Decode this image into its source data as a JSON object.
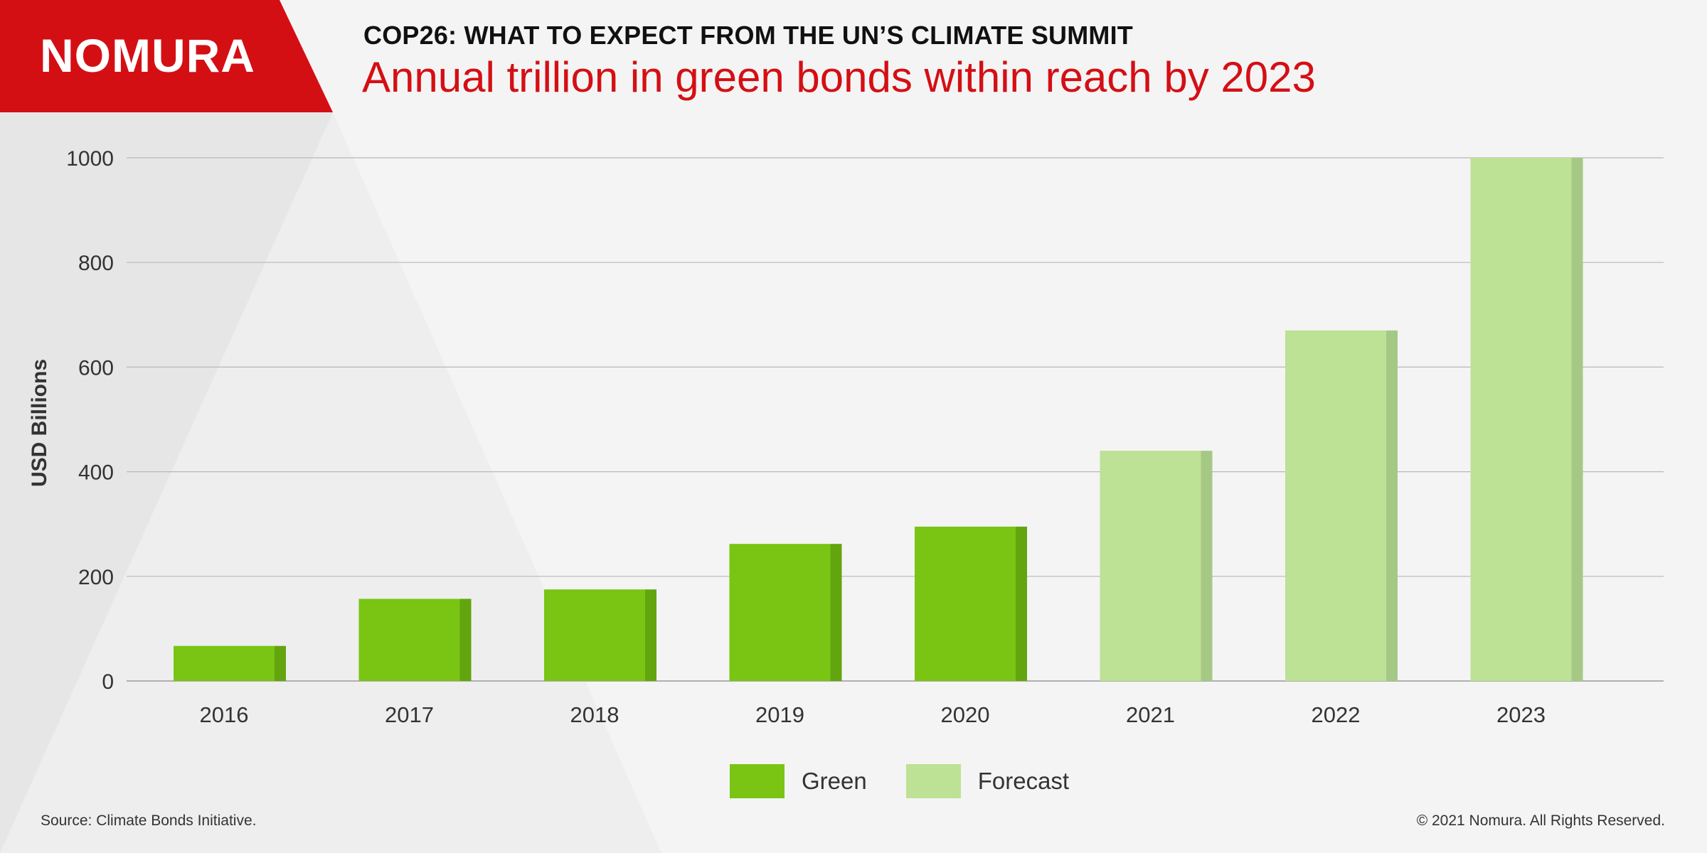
{
  "brand": {
    "logo_text": "NOMURA",
    "colors": {
      "red": "#d40f14",
      "green": "#7ac414",
      "green_side": "#63a50f",
      "forecast": "#bde195",
      "forecast_side": "#a6c885"
    }
  },
  "header": {
    "kicker": "COP26: WHAT TO EXPECT FROM THE UN’S CLIMATE SUMMIT",
    "headline": "Annual trillion in green bonds within reach by 2023"
  },
  "footer": {
    "source": "Source: Climate Bonds Initiative.",
    "copyright": "© 2021 Nomura. All Rights Reserved."
  },
  "chart_data": {
    "type": "bar",
    "categories": [
      "2016",
      "2017",
      "2018",
      "2019",
      "2020",
      "2021",
      "2022",
      "2023"
    ],
    "series": [
      {
        "name": "Green",
        "values": [
          67,
          157,
          175,
          262,
          295,
          null,
          null,
          null
        ]
      },
      {
        "name": "Forecast",
        "values": [
          null,
          null,
          null,
          null,
          null,
          440,
          670,
          1000
        ]
      }
    ],
    "title": "Annual trillion in green bonds within reach by 2023",
    "xlabel": "",
    "ylabel": "USD Billions",
    "ylim": [
      0,
      1000
    ],
    "yticks": [
      0,
      200,
      400,
      600,
      800,
      1000
    ],
    "grid": true,
    "legend": "bottom-center"
  }
}
